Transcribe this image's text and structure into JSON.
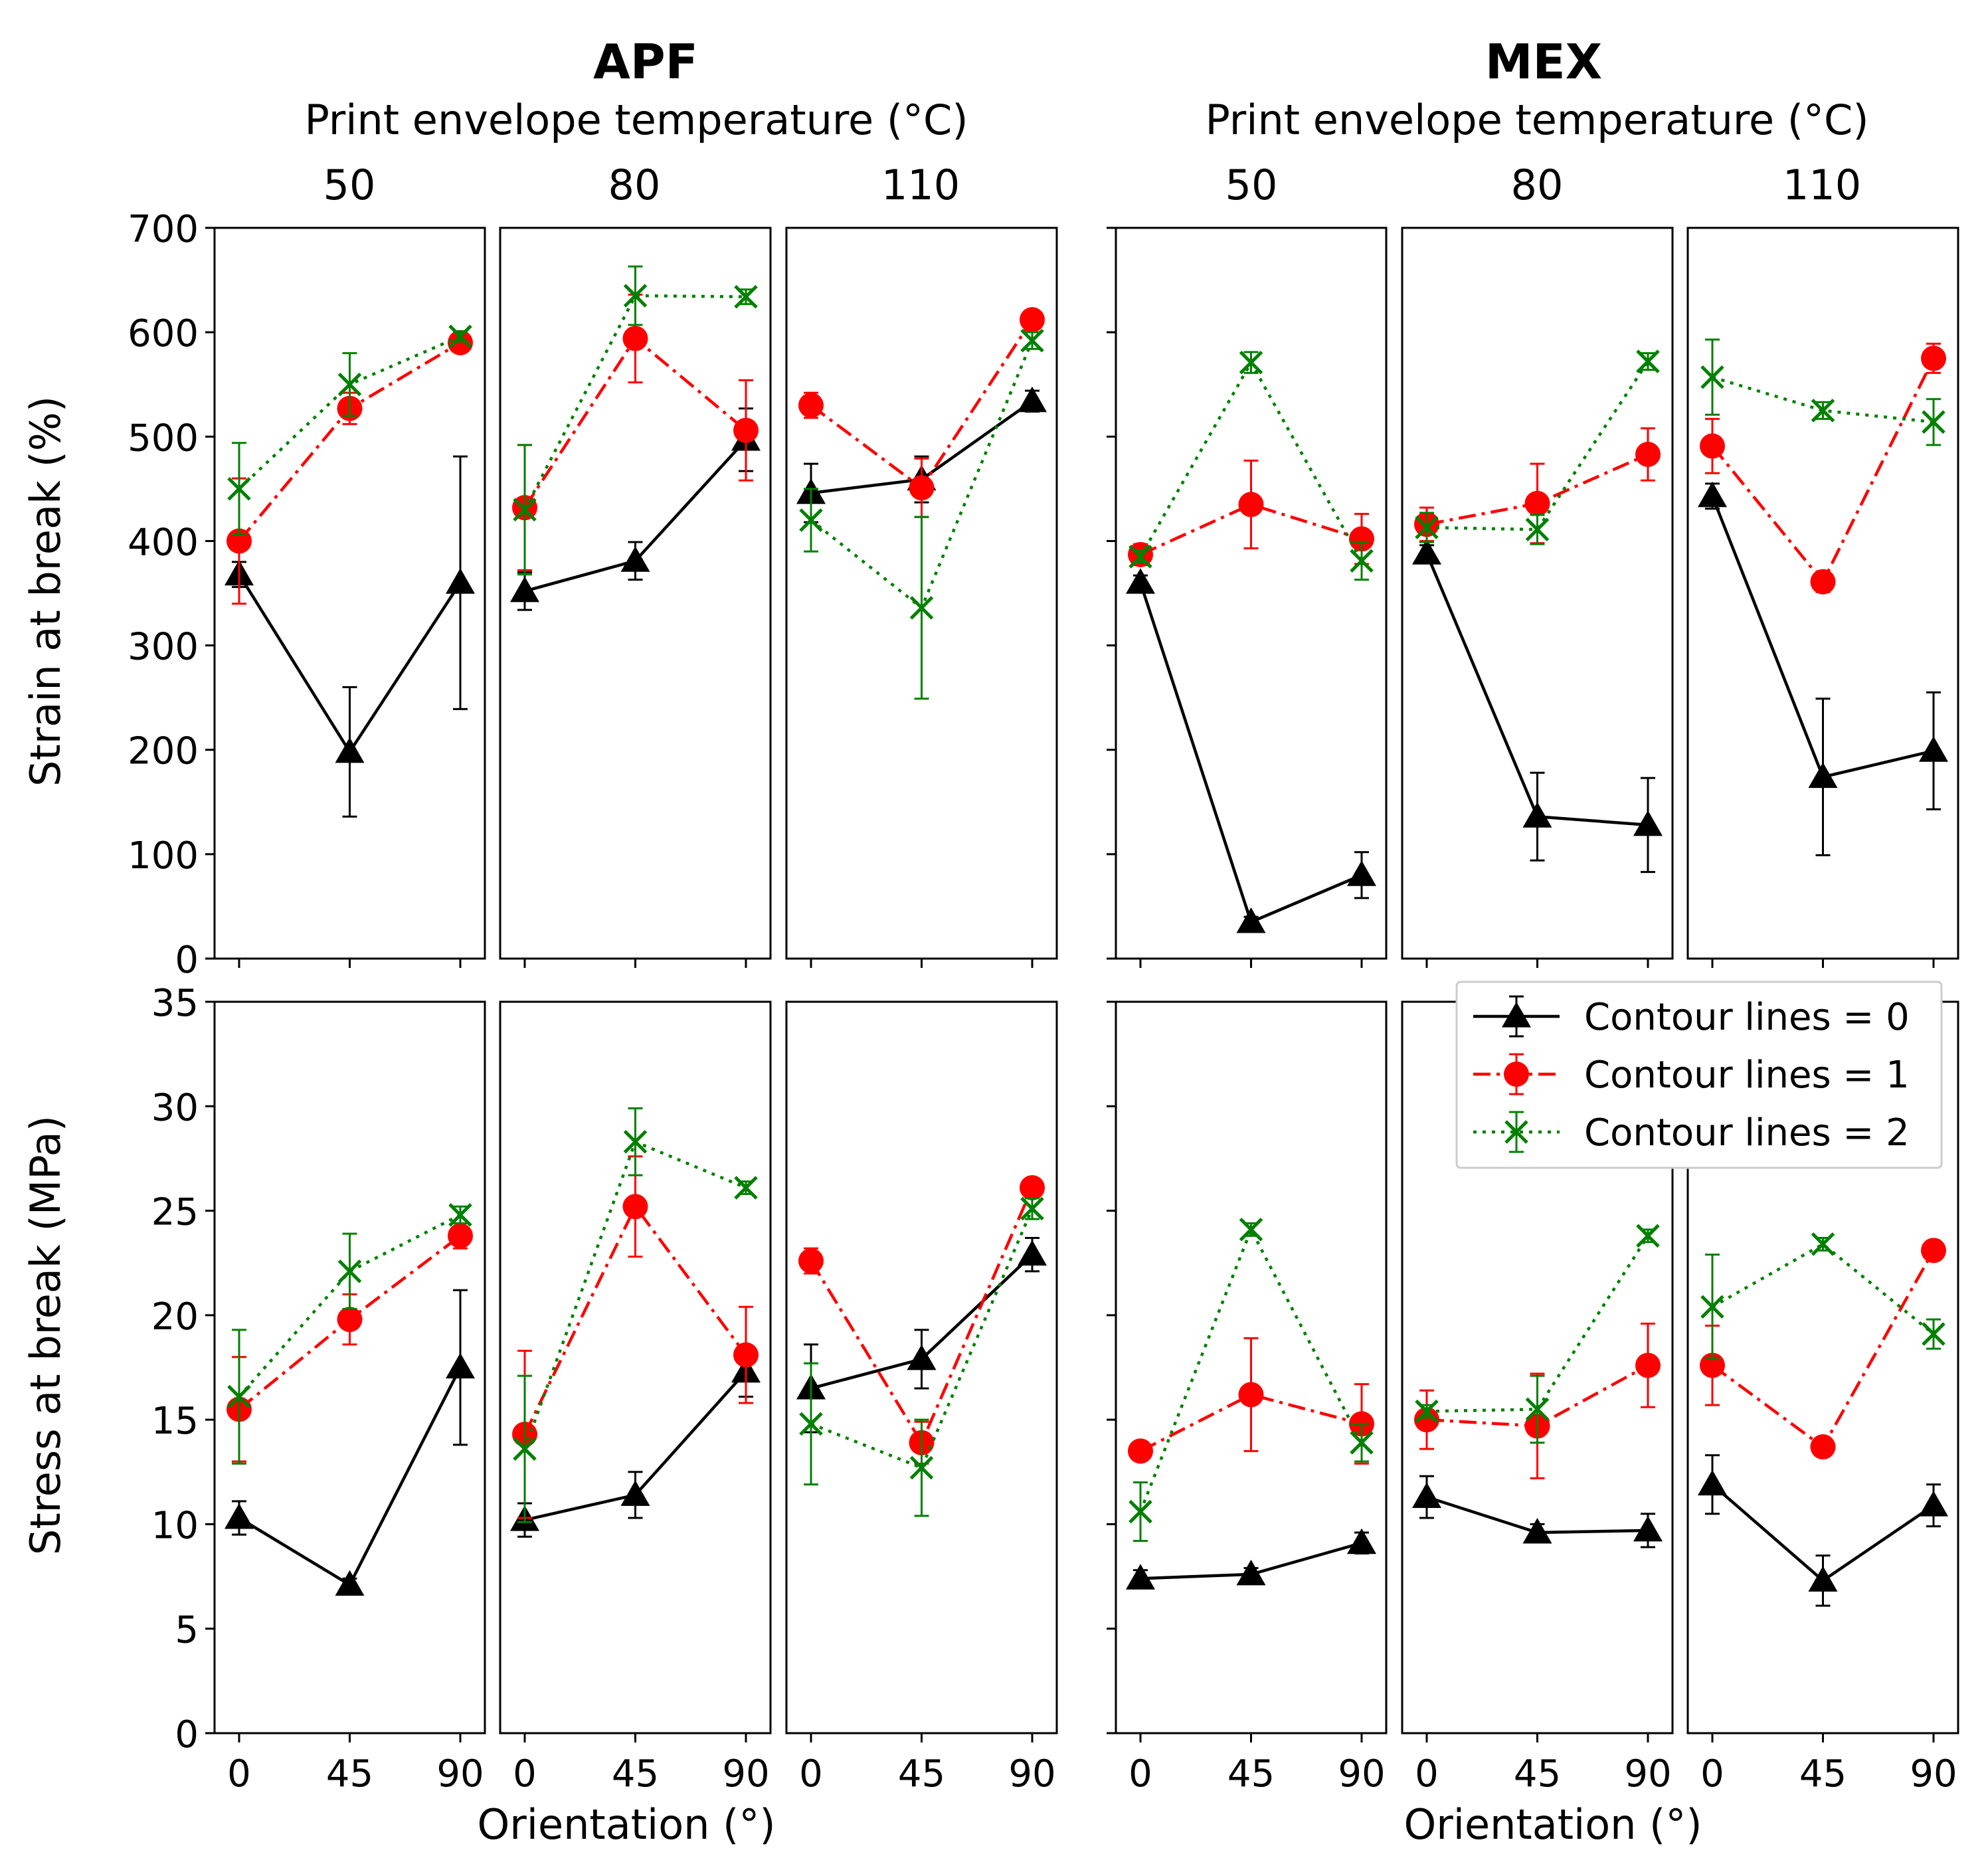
{
  "figure": {
    "groups": [
      {
        "title": "APF",
        "subtitle": "Print envelope temperature (°C)",
        "temps": [
          "50",
          "80",
          "110"
        ]
      },
      {
        "title": "MEX",
        "subtitle": "Print envelope temperature (°C)",
        "temps": [
          "50",
          "80",
          "110"
        ]
      }
    ],
    "xlabel": "Orientation  (°)",
    "x_ticks": [
      "0",
      "45",
      "90"
    ],
    "x_values": [
      0,
      45,
      90
    ],
    "legend": {
      "position": "top-right of lower-right group",
      "entries": [
        {
          "label": "Contour lines = 0",
          "color": "#000000",
          "marker": "triangle",
          "line": "solid"
        },
        {
          "label": "Contour lines = 1",
          "color": "#ff0000",
          "marker": "circle",
          "line": "dashdot"
        },
        {
          "label": "Contour lines = 2",
          "color": "#008000",
          "marker": "x",
          "line": "dotted"
        }
      ]
    }
  },
  "chart_data": [
    {
      "type": "line",
      "title": "Strain at break",
      "ylabel": "Strain at break  (%)",
      "ylim": [
        0,
        700
      ],
      "yticks": [
        "0",
        "100",
        "200",
        "300",
        "400",
        "500",
        "600",
        "700"
      ],
      "ytick_values": [
        0,
        100,
        200,
        300,
        400,
        500,
        600,
        700
      ],
      "x": [
        0,
        45,
        90
      ],
      "panels": [
        {
          "process": "APF",
          "temp": "50",
          "series": [
            {
              "name": "Contour lines = 0",
              "values": [
                368,
                198,
                360
              ],
              "errors": [
                12,
                62,
                121
              ]
            },
            {
              "name": "Contour lines = 1",
              "values": [
                400,
                527,
                590
              ],
              "errors": [
                60,
                15,
                8
              ]
            },
            {
              "name": "Contour lines = 2",
              "values": [
                450,
                550,
                596
              ],
              "errors": [
                44,
                30,
                5
              ]
            }
          ]
        },
        {
          "process": "APF",
          "temp": "80",
          "series": [
            {
              "name": "Contour lines = 0",
              "values": [
                352,
                381,
                497
              ],
              "errors": [
                18,
                18,
                30
              ]
            },
            {
              "name": "Contour lines = 1",
              "values": [
                432,
                594,
                506
              ],
              "errors": [
                60,
                42,
                48
              ]
            },
            {
              "name": "Contour lines = 2",
              "values": [
                430,
                635,
                634
              ],
              "errors": [
                62,
                28,
                7
              ]
            }
          ]
        },
        {
          "process": "APF",
          "temp": "110",
          "series": [
            {
              "name": "Contour lines = 0",
              "values": [
                446,
                459,
                534
              ],
              "errors": [
                28,
                22,
                10
              ]
            },
            {
              "name": "Contour lines = 1",
              "values": [
                530,
                451,
                612
              ],
              "errors": [
                12,
                28,
                5
              ]
            },
            {
              "name": "Contour lines = 2",
              "values": [
                420,
                336,
                592
              ],
              "errors": [
                30,
                87,
                8
              ]
            }
          ]
        },
        {
          "process": "MEX",
          "temp": "50",
          "series": [
            {
              "name": "Contour lines = 0",
              "values": [
                360,
                35,
                80
              ],
              "errors": [
                7,
                5,
                22
              ]
            },
            {
              "name": "Contour lines = 1",
              "values": [
                387,
                435,
                402
              ],
              "errors": [
                10,
                42,
                24
              ]
            },
            {
              "name": "Contour lines = 2",
              "values": [
                385,
                571,
                381
              ],
              "errors": [
                6,
                10,
                18
              ]
            }
          ]
        },
        {
          "process": "MEX",
          "temp": "80",
          "series": [
            {
              "name": "Contour lines = 0",
              "values": [
                388,
                136,
                128
              ],
              "errors": [
                8,
                42,
                45
              ]
            },
            {
              "name": "Contour lines = 1",
              "values": [
                416,
                436,
                483
              ],
              "errors": [
                16,
                38,
                25
              ]
            },
            {
              "name": "Contour lines = 2",
              "values": [
                413,
                411,
                572
              ],
              "errors": [
                14,
                14,
                8
              ]
            }
          ]
        },
        {
          "process": "MEX",
          "temp": "110",
          "series": [
            {
              "name": "Contour lines = 0",
              "values": [
                443,
                174,
                199
              ],
              "errors": [
                12,
                75,
                56
              ]
            },
            {
              "name": "Contour lines = 1",
              "values": [
                491,
                361,
                575
              ],
              "errors": [
                26,
                10,
                14
              ]
            },
            {
              "name": "Contour lines = 2",
              "values": [
                557,
                525,
                514
              ],
              "errors": [
                36,
                8,
                22
              ]
            }
          ]
        }
      ]
    },
    {
      "type": "line",
      "title": "Stress at break",
      "ylabel": "Stress at break  (MPa)",
      "ylim": [
        0,
        35
      ],
      "yticks": [
        "0",
        "5",
        "10",
        "15",
        "20",
        "25",
        "30",
        "35"
      ],
      "ytick_values": [
        0,
        5,
        10,
        15,
        20,
        25,
        30,
        35
      ],
      "x": [
        0,
        45,
        90
      ],
      "panels": [
        {
          "process": "APF",
          "temp": "50",
          "series": [
            {
              "name": "Contour lines = 0",
              "values": [
                10.3,
                7.1,
                17.5
              ],
              "errors": [
                0.8,
                0.3,
                3.7
              ]
            },
            {
              "name": "Contour lines = 1",
              "values": [
                15.5,
                19.8,
                23.8
              ],
              "errors": [
                2.5,
                1.2,
                0.6
              ]
            },
            {
              "name": "Contour lines = 2",
              "values": [
                16.1,
                22.1,
                24.8
              ],
              "errors": [
                3.2,
                1.8,
                0.4
              ]
            }
          ]
        },
        {
          "process": "APF",
          "temp": "80",
          "series": [
            {
              "name": "Contour lines = 0",
              "values": [
                10.2,
                11.4,
                17.3
              ],
              "errors": [
                0.8,
                1.1,
                1.2
              ]
            },
            {
              "name": "Contour lines = 1",
              "values": [
                14.3,
                25.2,
                18.1
              ],
              "errors": [
                4.0,
                2.4,
                2.3
              ]
            },
            {
              "name": "Contour lines = 2",
              "values": [
                13.6,
                28.3,
                26.1
              ],
              "errors": [
                3.5,
                1.6,
                0.3
              ]
            }
          ]
        },
        {
          "process": "APF",
          "temp": "110",
          "series": [
            {
              "name": "Contour lines = 0",
              "values": [
                16.5,
                17.9,
                22.9
              ],
              "errors": [
                2.1,
                1.4,
                0.8
              ]
            },
            {
              "name": "Contour lines = 1",
              "values": [
                22.6,
                13.9,
                26.1
              ],
              "errors": [
                0.6,
                1.0,
                0.3
              ]
            },
            {
              "name": "Contour lines = 2",
              "values": [
                14.8,
                12.7,
                25.1
              ],
              "errors": [
                2.9,
                2.3,
                0.5
              ]
            }
          ]
        },
        {
          "process": "MEX",
          "temp": "50",
          "series": [
            {
              "name": "Contour lines = 0",
              "values": [
                7.4,
                7.6,
                9.1
              ],
              "errors": [
                0.4,
                0.3,
                0.5
              ]
            },
            {
              "name": "Contour lines = 1",
              "values": [
                13.5,
                16.2,
                14.8
              ],
              "errors": [
                0.3,
                2.7,
                1.9
              ]
            },
            {
              "name": "Contour lines = 2",
              "values": [
                10.6,
                24.1,
                13.9
              ],
              "errors": [
                1.4,
                0.3,
                0.9
              ]
            }
          ]
        },
        {
          "process": "MEX",
          "temp": "80",
          "series": [
            {
              "name": "Contour lines = 0",
              "values": [
                11.3,
                9.6,
                9.7
              ],
              "errors": [
                1.0,
                0.4,
                0.8
              ]
            },
            {
              "name": "Contour lines = 1",
              "values": [
                15.0,
                14.7,
                17.6
              ],
              "errors": [
                1.4,
                2.5,
                2.0
              ]
            },
            {
              "name": "Contour lines = 2",
              "values": [
                15.4,
                15.5,
                23.8
              ],
              "errors": [
                0.3,
                1.6,
                0.3
              ]
            }
          ]
        },
        {
          "process": "MEX",
          "temp": "110",
          "series": [
            {
              "name": "Contour lines = 0",
              "values": [
                11.9,
                7.3,
                10.9
              ],
              "errors": [
                1.4,
                1.2,
                1.0
              ]
            },
            {
              "name": "Contour lines = 1",
              "values": [
                17.6,
                13.7,
                23.1
              ],
              "errors": [
                1.9,
                0.3,
                0.4
              ]
            },
            {
              "name": "Contour lines = 2",
              "values": [
                20.4,
                23.4,
                19.1
              ],
              "errors": [
                2.5,
                0.3,
                0.7
              ]
            }
          ]
        }
      ]
    }
  ]
}
